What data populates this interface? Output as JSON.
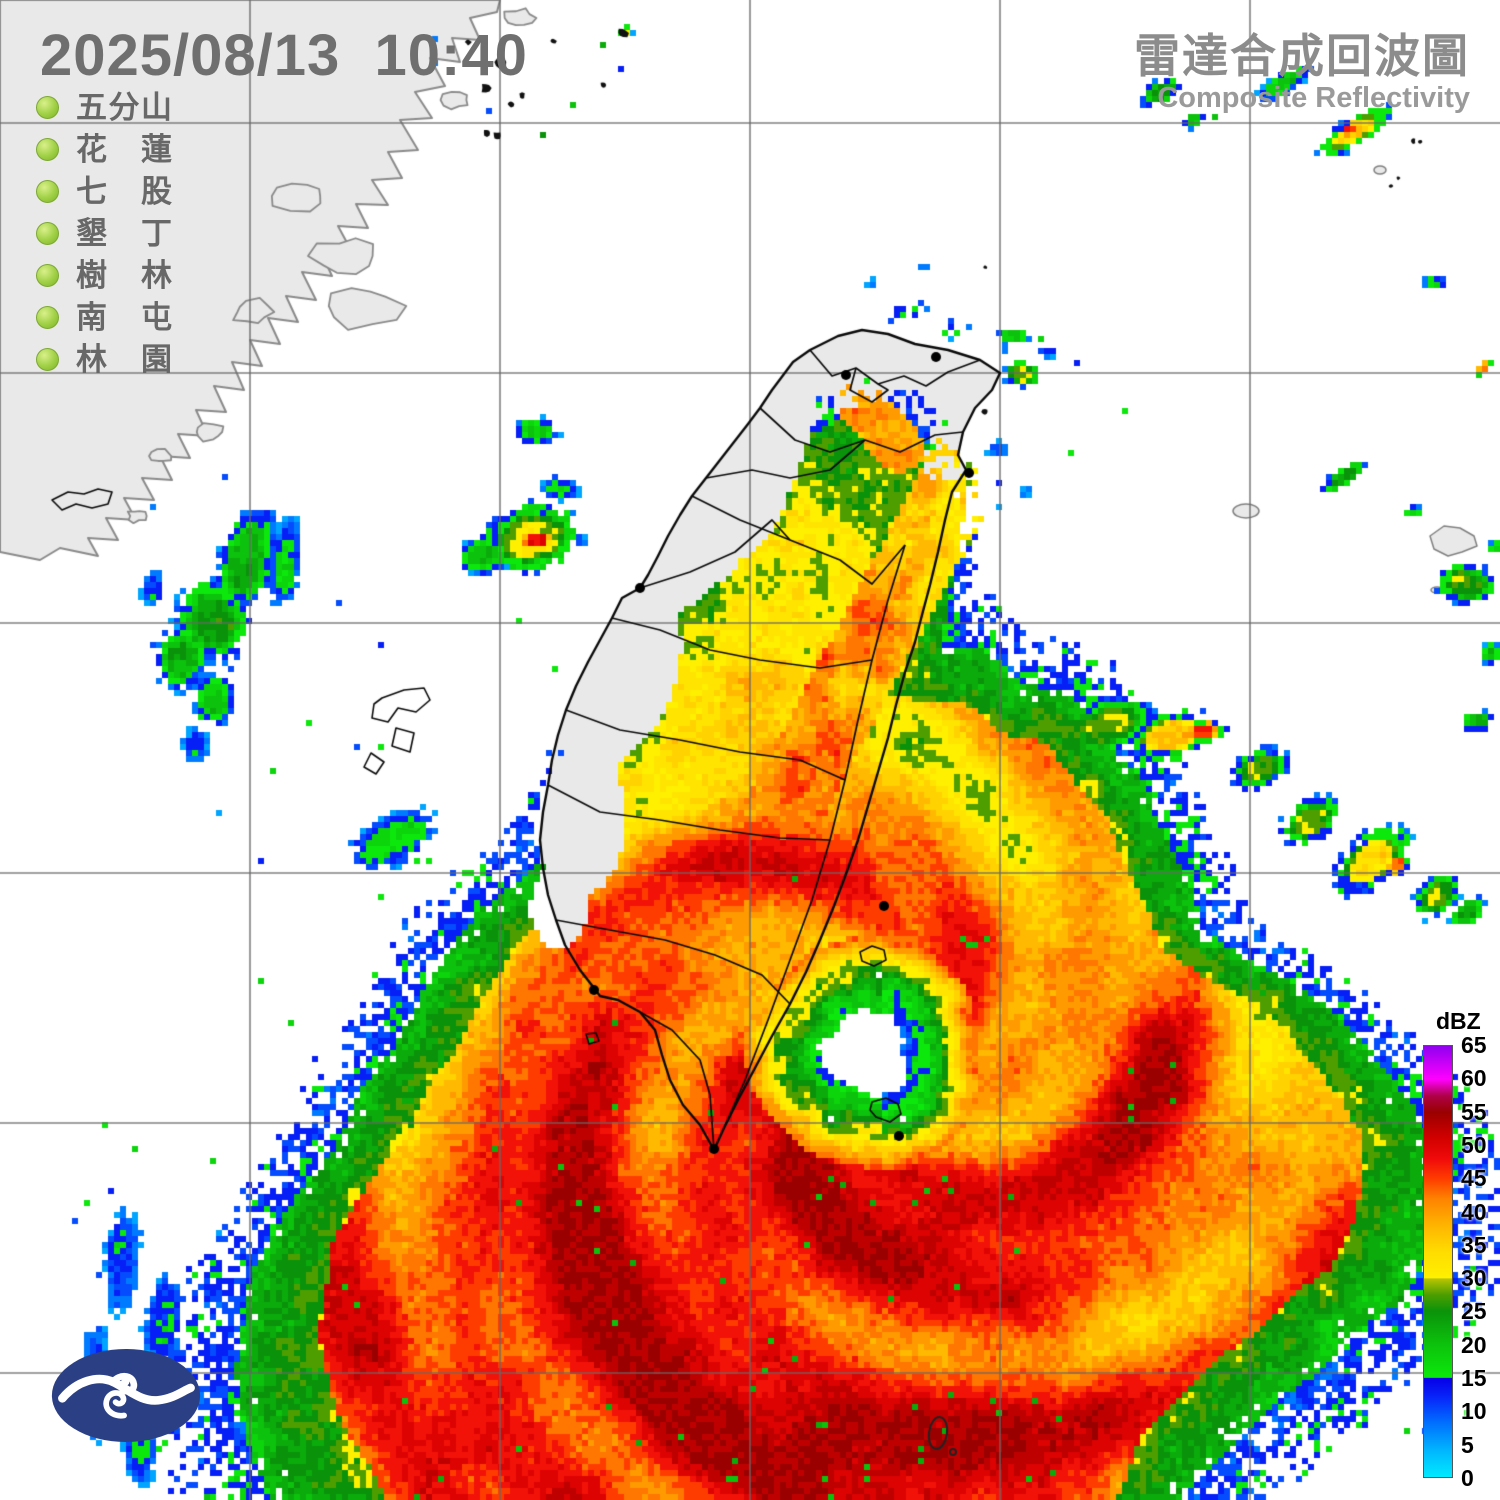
{
  "header": {
    "timestamp": "2025/08/13  10:40",
    "title": "雷達合成回波圖",
    "subtitle": "Composite Reflectivity"
  },
  "stations": [
    "五分山",
    "花蓮",
    "七股",
    "墾丁",
    "樹林",
    "南屯",
    "林園"
  ],
  "legend": {
    "unit": "dBZ",
    "ticks": [
      "65",
      "60",
      "55",
      "50",
      "45",
      "40",
      "35",
      "30",
      "25",
      "20",
      "15",
      "10",
      "5",
      "0"
    ],
    "max": 65,
    "stops": [
      [
        0,
        "#00eaff"
      ],
      [
        4,
        "#00b6ff"
      ],
      [
        8,
        "#0072ff"
      ],
      [
        12,
        "#0726fa"
      ],
      [
        14.9,
        "#0600e6"
      ],
      [
        15,
        "#0ce80c"
      ],
      [
        20,
        "#0cc20c"
      ],
      [
        25,
        "#0a930a"
      ],
      [
        27.5,
        "#4e9e00"
      ],
      [
        29.9,
        "#b7c400"
      ],
      [
        30,
        "#fff000"
      ],
      [
        34,
        "#ffdc00"
      ],
      [
        38,
        "#ffb400"
      ],
      [
        42,
        "#ff8200"
      ],
      [
        45,
        "#ff3c00"
      ],
      [
        48,
        "#f00a0a"
      ],
      [
        51,
        "#d40000"
      ],
      [
        55,
        "#9a0000"
      ],
      [
        57.5,
        "#ae0048"
      ],
      [
        60,
        "#ff00ff"
      ],
      [
        65,
        "#9000f0"
      ]
    ]
  },
  "colors": {
    "land": "#e9e9e9",
    "china_coast": "#8a8a8a",
    "boundary": "#0a0a0a",
    "grid": "#6f6f6f",
    "timestamp_text": "#6f6f6f",
    "title_text": "#8c8c8c",
    "station_text": "#686868",
    "station_dot": "#9fd045",
    "logo_bg": "#2b3f84"
  }
}
